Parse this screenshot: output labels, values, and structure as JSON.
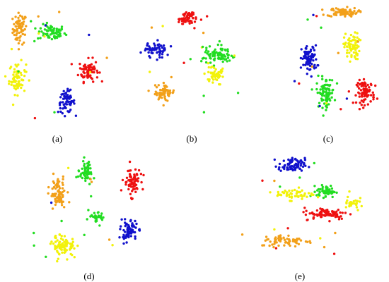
{
  "figure": {
    "panel_labels": [
      "(a)",
      "(b)",
      "(c)",
      "(d)",
      "(e)"
    ]
  },
  "colors": {
    "orange": "#f2a01a",
    "green": "#22dd22",
    "red": "#ee1111",
    "yellow": "#f2f20a",
    "blue": "#1111cc"
  },
  "chart_data": [
    {
      "type": "scatter",
      "label": "(a)",
      "xlim": [
        0,
        100
      ],
      "ylim": [
        0,
        100
      ],
      "axes": "hidden",
      "grid": false,
      "clusters": [
        {
          "color": "orange",
          "center": [
            17,
            78
          ],
          "spread": [
            5,
            10
          ],
          "count": 70
        },
        {
          "color": "green",
          "center": [
            44,
            75
          ],
          "spread": [
            10,
            5
          ],
          "count": 70
        },
        {
          "color": "red",
          "center": [
            76,
            46
          ],
          "spread": [
            7,
            7
          ],
          "count": 75
        },
        {
          "color": "yellow",
          "center": [
            15,
            40
          ],
          "spread": [
            6,
            10
          ],
          "count": 70
        },
        {
          "color": "blue",
          "center": [
            57,
            22
          ],
          "spread": [
            6,
            7
          ],
          "count": 65
        }
      ]
    },
    {
      "type": "scatter",
      "label": "(b)",
      "xlim": [
        0,
        100
      ],
      "ylim": [
        0,
        100
      ],
      "axes": "hidden",
      "grid": false,
      "clusters": [
        {
          "color": "red",
          "center": [
            48,
            88
          ],
          "spread": [
            6,
            5
          ],
          "count": 65
        },
        {
          "color": "blue",
          "center": [
            24,
            63
          ],
          "spread": [
            8,
            5
          ],
          "count": 65
        },
        {
          "color": "green",
          "center": [
            73,
            58
          ],
          "spread": [
            9,
            6
          ],
          "count": 85
        },
        {
          "color": "yellow",
          "center": [
            70,
            42
          ],
          "spread": [
            7,
            6
          ],
          "count": 55
        },
        {
          "color": "orange",
          "center": [
            30,
            28
          ],
          "spread": [
            7,
            6
          ],
          "count": 60
        }
      ]
    },
    {
      "type": "scatter",
      "label": "(c)",
      "xlim": [
        0,
        100
      ],
      "ylim": [
        0,
        100
      ],
      "axes": "hidden",
      "grid": false,
      "clusters": [
        {
          "color": "orange",
          "center": [
            56,
            93
          ],
          "spread": [
            12,
            3
          ],
          "count": 80
        },
        {
          "color": "yellow",
          "center": [
            65,
            65
          ],
          "spread": [
            6,
            9
          ],
          "count": 75
        },
        {
          "color": "blue",
          "center": [
            25,
            55
          ],
          "spread": [
            6,
            9
          ],
          "count": 80
        },
        {
          "color": "green",
          "center": [
            40,
            28
          ],
          "spread": [
            7,
            10
          ],
          "count": 85
        },
        {
          "color": "red",
          "center": [
            78,
            28
          ],
          "spread": [
            7,
            8
          ],
          "count": 85
        }
      ]
    },
    {
      "type": "scatter",
      "label": "(d)",
      "xlim": [
        0,
        100
      ],
      "ylim": [
        0,
        100
      ],
      "axes": "hidden",
      "grid": false,
      "clusters": [
        {
          "color": "green",
          "center": [
            47,
            78
          ],
          "spread": [
            4,
            7
          ],
          "count": 60
        },
        {
          "color": "orange",
          "center": [
            27,
            60
          ],
          "spread": [
            5,
            10
          ],
          "count": 80
        },
        {
          "color": "red",
          "center": [
            80,
            70
          ],
          "spread": [
            5,
            9
          ],
          "count": 70
        },
        {
          "color": "blue",
          "center": [
            78,
            30
          ],
          "spread": [
            5,
            7
          ],
          "count": 75
        },
        {
          "color": "yellow",
          "center": [
            31,
            18
          ],
          "spread": [
            7,
            7
          ],
          "count": 85
        },
        {
          "color": "green",
          "center": [
            54,
            40
          ],
          "spread": [
            6,
            4
          ],
          "count": 30
        }
      ]
    },
    {
      "type": "scatter",
      "label": "(e)",
      "xlim": [
        0,
        100
      ],
      "ylim": [
        0,
        100
      ],
      "axes": "hidden",
      "grid": false,
      "clusters": [
        {
          "color": "blue",
          "center": [
            38,
            83
          ],
          "spread": [
            7,
            5
          ],
          "count": 75
        },
        {
          "color": "green",
          "center": [
            60,
            62
          ],
          "spread": [
            5,
            4
          ],
          "count": 50
        },
        {
          "color": "yellow",
          "center": [
            40,
            60
          ],
          "spread": [
            10,
            4
          ],
          "count": 50
        },
        {
          "color": "red",
          "center": [
            60,
            44
          ],
          "spread": [
            12,
            4
          ],
          "count": 80
        },
        {
          "color": "orange",
          "center": [
            35,
            22
          ],
          "spread": [
            14,
            4
          ],
          "count": 70
        },
        {
          "color": "yellow",
          "center": [
            76,
            53
          ],
          "spread": [
            4,
            6
          ],
          "count": 25
        }
      ]
    }
  ]
}
